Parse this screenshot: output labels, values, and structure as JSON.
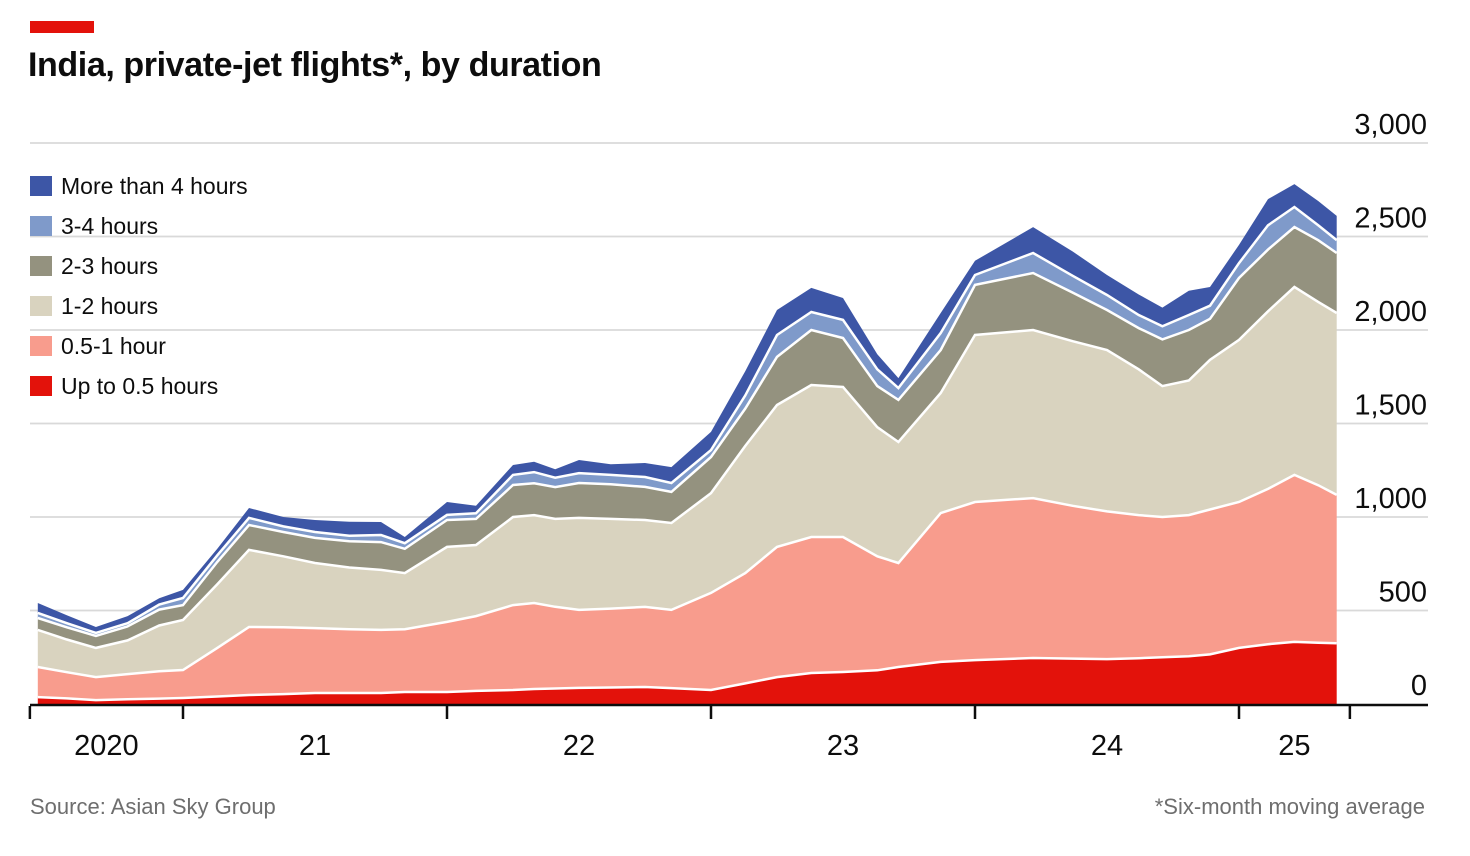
{
  "header": {
    "title": "India, private-jet flights*, by duration"
  },
  "footer": {
    "source": "Source: Asian Sky Group",
    "note": "*Six-month moving average"
  },
  "colors": {
    "brand_red": "#e3120b",
    "background": "#ffffff",
    "gridline": "#d9d9d9",
    "axis": "#0d0d0d",
    "text": "#0d0d0d",
    "muted_text": "#6e6e6e",
    "band_separator": "#ffffff"
  },
  "chart_data": {
    "type": "area",
    "stacked": true,
    "title": "India, private-jet flights*, by duration",
    "xlabel": "",
    "ylabel": "",
    "ylim": [
      0,
      3000
    ],
    "xlim": [
      2020.45,
      2025.37
    ],
    "grid": "horizontal",
    "legend_position": "top-left",
    "legend_order": [
      "More than 4 hours",
      "3-4 hours",
      "2-3 hours",
      "1-2 hours",
      "0.5-1 hour",
      "Up to 0.5 hours"
    ],
    "x": [
      2020.45,
      2020.56,
      2020.67,
      2020.79,
      2020.91,
      2021.0,
      2021.13,
      2021.25,
      2021.38,
      2021.5,
      2021.63,
      2021.75,
      2021.84,
      2022.0,
      2022.11,
      2022.25,
      2022.33,
      2022.41,
      2022.5,
      2022.62,
      2022.75,
      2022.85,
      2023.0,
      2023.13,
      2023.25,
      2023.38,
      2023.5,
      2023.63,
      2023.71,
      2023.87,
      2024.0,
      2024.22,
      2024.37,
      2024.5,
      2024.62,
      2024.71,
      2024.81,
      2024.89,
      2025.0,
      2025.11,
      2025.21,
      2025.3,
      2025.37
    ],
    "series": [
      {
        "name": "Up to 0.5 hours",
        "color": "#e3120b",
        "values": [
          37,
          30,
          21,
          25,
          29,
          32,
          40,
          48,
          53,
          59,
          59,
          59,
          64,
          64,
          70,
          75,
          80,
          83,
          86,
          88,
          91,
          85,
          75,
          110,
          144,
          166,
          171,
          180,
          198,
          225,
          235,
          246,
          243,
          240,
          245,
          250,
          255,
          265,
          300,
          320,
          332,
          328,
          325
        ]
      },
      {
        "name": "0.5-1 hour",
        "color": "#f89c8d",
        "values": [
          161,
          140,
          123,
          135,
          146,
          150,
          260,
          364,
          357,
          347,
          341,
          337,
          336,
          375,
          400,
          454,
          460,
          437,
          417,
          422,
          428,
          418,
          519,
          590,
          696,
          727,
          722,
          610,
          556,
          796,
          845,
          855,
          817,
          790,
          765,
          750,
          755,
          775,
          780,
          830,
          893,
          842,
          793
        ]
      },
      {
        "name": "1-2 hours",
        "color": "#d9d3bf",
        "values": [
          198,
          175,
          156,
          180,
          245,
          267,
          340,
          412,
          380,
          348,
          330,
          321,
          300,
          401,
          380,
          471,
          470,
          470,
          492,
          480,
          465,
          465,
          534,
          680,
          759,
          813,
          802,
          690,
          647,
          642,
          893,
          899,
          880,
          863,
          780,
          700,
          720,
          800,
          867,
          950,
          1005,
          980,
          973
        ]
      },
      {
        "name": "2-3 hours",
        "color": "#94927f",
        "values": [
          64,
          65,
          64,
          75,
          85,
          80,
          120,
          133,
          130,
          134,
          140,
          149,
          130,
          144,
          140,
          171,
          170,
          170,
          187,
          185,
          177,
          166,
          193,
          200,
          257,
          294,
          262,
          220,
          225,
          230,
          268,
          305,
          260,
          214,
          220,
          250,
          270,
          220,
          331,
          330,
          321,
          330,
          321
        ]
      },
      {
        "name": "3-4 hours",
        "color": "#7f9aca",
        "values": [
          27,
          22,
          16,
          17,
          27,
          38,
          35,
          38,
          30,
          32,
          30,
          38,
          30,
          27,
          30,
          54,
          60,
          50,
          53,
          50,
          53,
          48,
          37,
          70,
          117,
          96,
          97,
          90,
          64,
          91,
          53,
          107,
          90,
          80,
          70,
          70,
          80,
          70,
          80,
          130,
          107,
          80,
          69
        ]
      },
      {
        "name": "More than 4 hours",
        "color": "#3d56a6",
        "values": [
          53,
          43,
          32,
          38,
          33,
          43,
          35,
          53,
          50,
          64,
          75,
          69,
          33,
          69,
          40,
          53,
          55,
          45,
          70,
          57,
          75,
          85,
          97,
          130,
          134,
          129,
          117,
          80,
          53,
          107,
          76,
          138,
          130,
          107,
          110,
          100,
          130,
          100,
          97,
          140,
          122,
          130,
          129
        ]
      }
    ],
    "y_ticks": [
      {
        "value": 0,
        "label": "0"
      },
      {
        "value": 500,
        "label": "500"
      },
      {
        "value": 1000,
        "label": "1,000"
      },
      {
        "value": 1500,
        "label": "1,500"
      },
      {
        "value": 2000,
        "label": "2,000"
      },
      {
        "value": 2500,
        "label": "2,500"
      },
      {
        "value": 3000,
        "label": "3,000"
      }
    ],
    "x_axis": {
      "tick_years": [
        2020.42,
        2021,
        2022,
        2023,
        2024,
        2025,
        2025.42
      ],
      "labels": [
        "2020",
        "21",
        "22",
        "23",
        "24",
        "25"
      ]
    }
  }
}
